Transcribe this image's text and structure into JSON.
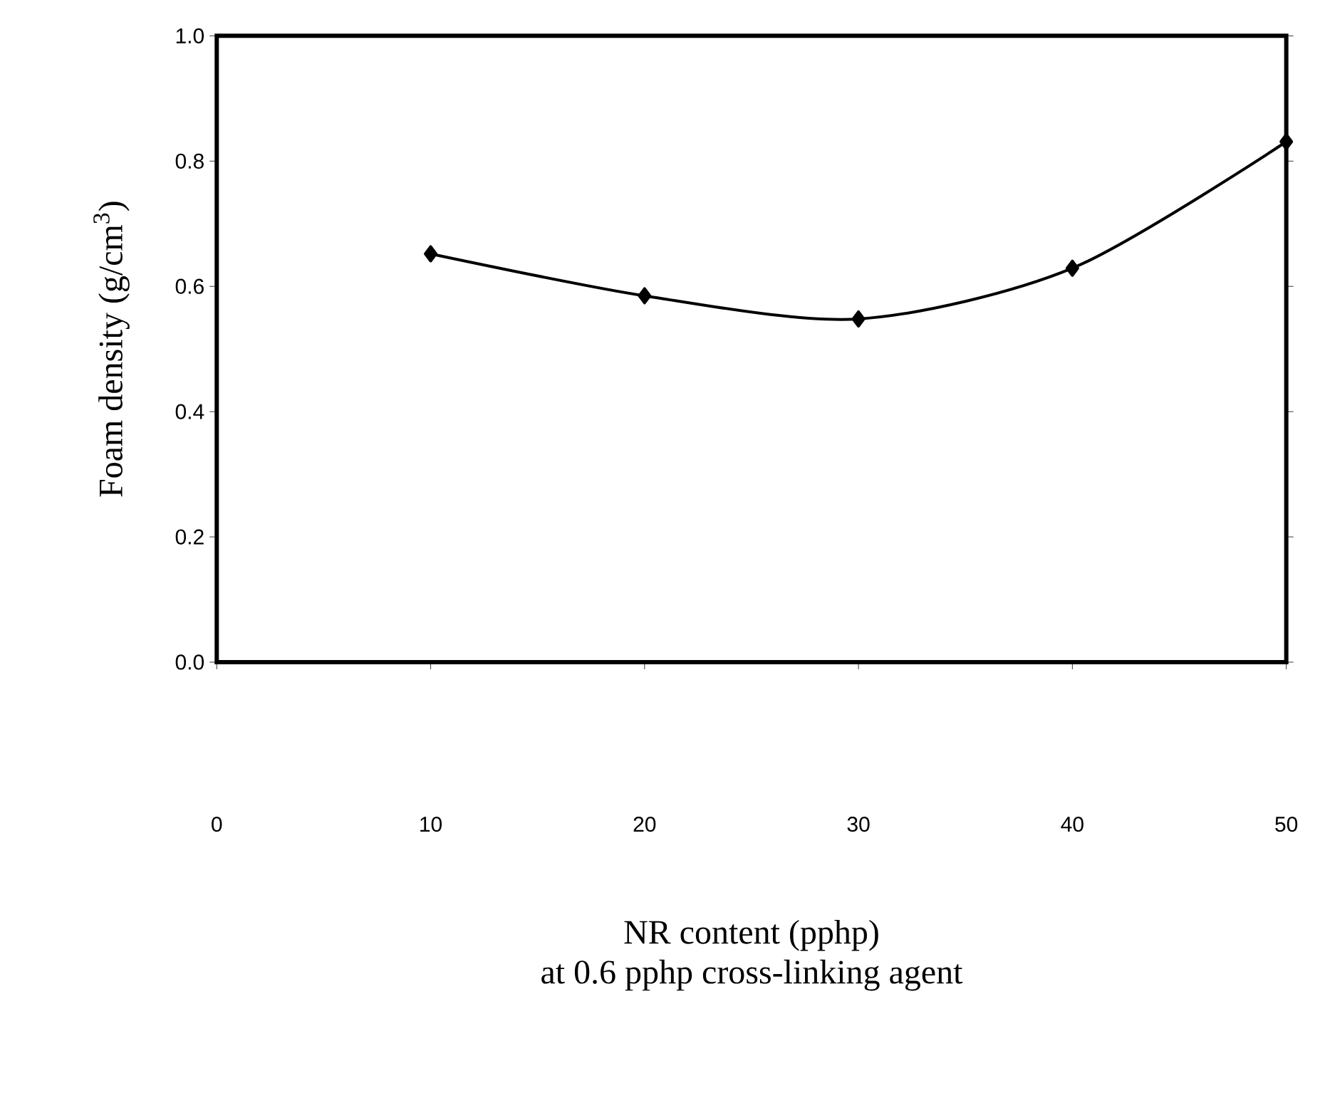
{
  "chart_data": {
    "type": "line",
    "xlabel": "NR content (pphp)\nat 0.6 pphp cross-linking agent",
    "ylabel": "Foam density (g/cm$^{3}$)",
    "x": [
      10,
      20,
      30,
      40,
      50
    ],
    "series": [
      {
        "color": "#000000",
        "values": [
          0.652,
          0.585,
          0.548,
          0.629,
          0.831
        ]
      }
    ],
    "xlim": [
      0,
      50
    ],
    "ylim": [
      0,
      1.0
    ],
    "xticks": [
      0,
      10,
      20,
      30,
      40,
      50
    ],
    "yticks": [
      {
        "value": 0,
        "label": "0.0"
      },
      {
        "value": 0.2,
        "label": "0.2"
      },
      {
        "value": 0.4,
        "label": "0.4"
      },
      {
        "value": 0.6,
        "label": "0.6"
      },
      {
        "value": 0.8,
        "label": "0.8"
      },
      {
        "value": 1.0,
        "label": "1.0"
      }
    ],
    "marker": "diamond",
    "line_style": "solid",
    "grid": false
  }
}
